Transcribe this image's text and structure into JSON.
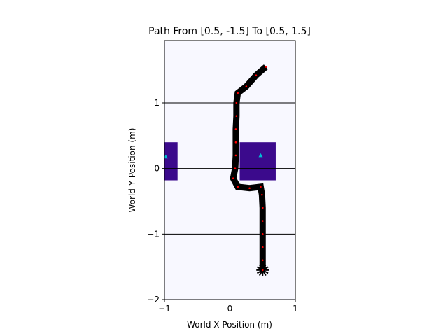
{
  "chart_data": {
    "type": "path-map",
    "title": "Path From [0.5, -1.5] To [0.5, 1.5]",
    "xlabel": "World X Position (m)",
    "ylabel": "World Y Position (m)",
    "xlim": [
      -1.0,
      1.0
    ],
    "ylim": [
      -2.0,
      1.95
    ],
    "grid": true,
    "x_ticks": [
      {
        "value": -1,
        "label": "−1"
      },
      {
        "value": 0,
        "label": "0"
      },
      {
        "value": 1,
        "label": "1"
      }
    ],
    "y_ticks": [
      {
        "value": -2,
        "label": "−2"
      },
      {
        "value": -1,
        "label": "−1"
      },
      {
        "value": 0,
        "label": "0"
      },
      {
        "value": 1,
        "label": "1"
      }
    ],
    "obstacles": [
      {
        "x": [
          -1.0,
          -0.8
        ],
        "y": [
          -0.18,
          0.4
        ]
      },
      {
        "x": [
          0.15,
          0.7
        ],
        "y": [
          -0.18,
          0.4
        ]
      }
    ],
    "obstacle_markers": [
      {
        "x": -0.98,
        "y": 0.18
      },
      {
        "x": 0.47,
        "y": 0.2
      }
    ],
    "path": [
      [
        0.5,
        -1.55
      ],
      [
        0.5,
        -1.4
      ],
      [
        0.5,
        -1.2
      ],
      [
        0.5,
        -1.0
      ],
      [
        0.5,
        -0.8
      ],
      [
        0.5,
        -0.6
      ],
      [
        0.49,
        -0.4
      ],
      [
        0.47,
        -0.28
      ],
      [
        0.3,
        -0.3
      ],
      [
        0.12,
        -0.28
      ],
      [
        0.05,
        -0.15
      ],
      [
        0.08,
        0.0
      ],
      [
        0.09,
        0.2
      ],
      [
        0.09,
        0.4
      ],
      [
        0.09,
        0.6
      ],
      [
        0.1,
        0.8
      ],
      [
        0.1,
        1.0
      ],
      [
        0.12,
        1.15
      ],
      [
        0.25,
        1.25
      ],
      [
        0.4,
        1.42
      ],
      [
        0.55,
        1.55
      ]
    ],
    "colors": {
      "background": "#f8f8ff",
      "obstacle": "#3b0a8c",
      "grid": "#000000",
      "path": "#000000",
      "path_points": "#ff0000",
      "markers": "#00bcd4"
    }
  }
}
